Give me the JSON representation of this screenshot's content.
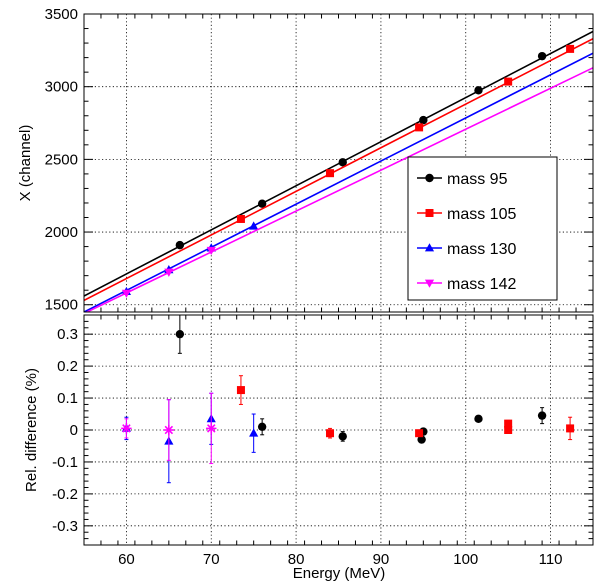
{
  "chart_data": [
    {
      "type": "scatter",
      "panel": "top",
      "ylabel": "X (channel)",
      "xlim": [
        55,
        115
      ],
      "ylim": [
        1450,
        3500
      ],
      "grid": true,
      "x_ticks": [
        60,
        70,
        80,
        90,
        100,
        110
      ],
      "y_ticks": [
        1500,
        2000,
        2500,
        3000,
        3500
      ],
      "legend_placement": "right",
      "series": [
        {
          "name": "mass 95",
          "color": "#000000",
          "marker": "circle",
          "points": [
            [
              66.3,
              1910
            ],
            [
              76.0,
              2195
            ],
            [
              85.5,
              2480
            ],
            [
              95.0,
              2770
            ],
            [
              101.5,
              2975
            ],
            [
              109.0,
              3210
            ]
          ],
          "fit": [
            [
              55,
              1560
            ],
            [
              115,
              3380
            ]
          ]
        },
        {
          "name": "mass 105",
          "color": "#ff0000",
          "marker": "square",
          "points": [
            [
              73.5,
              2090
            ],
            [
              84.0,
              2405
            ],
            [
              94.5,
              2720
            ],
            [
              105.0,
              3035
            ],
            [
              112.3,
              3260
            ]
          ],
          "fit": [
            [
              55,
              1530
            ],
            [
              115,
              3330
            ]
          ]
        },
        {
          "name": "mass 130",
          "color": "#0000ff",
          "marker": "triangle-up",
          "points": [
            [
              60.0,
              1590
            ],
            [
              65.0,
              1740
            ],
            [
              70.0,
              1890
            ],
            [
              75.0,
              2040
            ]
          ],
          "fit": [
            [
              55,
              1450
            ],
            [
              115,
              3230
            ]
          ]
        },
        {
          "name": "mass 142",
          "color": "#ff00ff",
          "marker": "triangle-down",
          "points": [
            [
              60.0,
              1580
            ],
            [
              65.0,
              1725
            ],
            [
              70.0,
              1875
            ]
          ],
          "fit": [
            [
              55,
              1440
            ],
            [
              115,
              3130
            ]
          ]
        }
      ]
    },
    {
      "type": "scatter",
      "panel": "bottom",
      "xlabel": "Energy (MeV)",
      "ylabel": "Rel. difference (%)",
      "xlim": [
        55,
        115
      ],
      "ylim": [
        -0.36,
        0.36
      ],
      "grid": true,
      "x_ticks": [
        60,
        70,
        80,
        90,
        100,
        110
      ],
      "y_ticks": [
        -0.3,
        -0.2,
        -0.1,
        0,
        0.1,
        0.2,
        0.3
      ],
      "series": [
        {
          "name": "mass 95",
          "color": "#000000",
          "marker": "circle",
          "points": [
            [
              66.3,
              0.3,
              0.06
            ],
            [
              76.0,
              0.01,
              0.025
            ],
            [
              85.5,
              -0.02,
              0.015
            ],
            [
              94.8,
              -0.03,
              0.01
            ],
            [
              95.0,
              -0.005,
              0.01
            ],
            [
              101.5,
              0.035,
              0.01
            ],
            [
              109.0,
              0.045,
              0.025
            ]
          ]
        },
        {
          "name": "mass 105",
          "color": "#ff0000",
          "marker": "square",
          "points": [
            [
              73.5,
              0.125,
              0.045
            ],
            [
              84.0,
              -0.01,
              0.015
            ],
            [
              94.5,
              -0.01,
              0.01
            ],
            [
              105.0,
              0.02,
              0.01
            ],
            [
              105.0,
              0.0,
              0.01
            ],
            [
              112.3,
              0.005,
              0.035
            ]
          ]
        },
        {
          "name": "mass 130",
          "color": "#0000ff",
          "marker": "triangle-up",
          "points": [
            [
              60.0,
              0.005,
              0.035
            ],
            [
              65.0,
              -0.035,
              0.13
            ],
            [
              70.0,
              0.035,
              0.08
            ],
            [
              75.0,
              -0.01,
              0.06
            ]
          ]
        },
        {
          "name": "mass 142",
          "color": "#ff00ff",
          "marker": "star",
          "points": [
            [
              60.0,
              0.005,
              0.03
            ],
            [
              65.0,
              0.0,
              0.095
            ],
            [
              70.0,
              0.005,
              0.11
            ]
          ]
        }
      ]
    }
  ]
}
